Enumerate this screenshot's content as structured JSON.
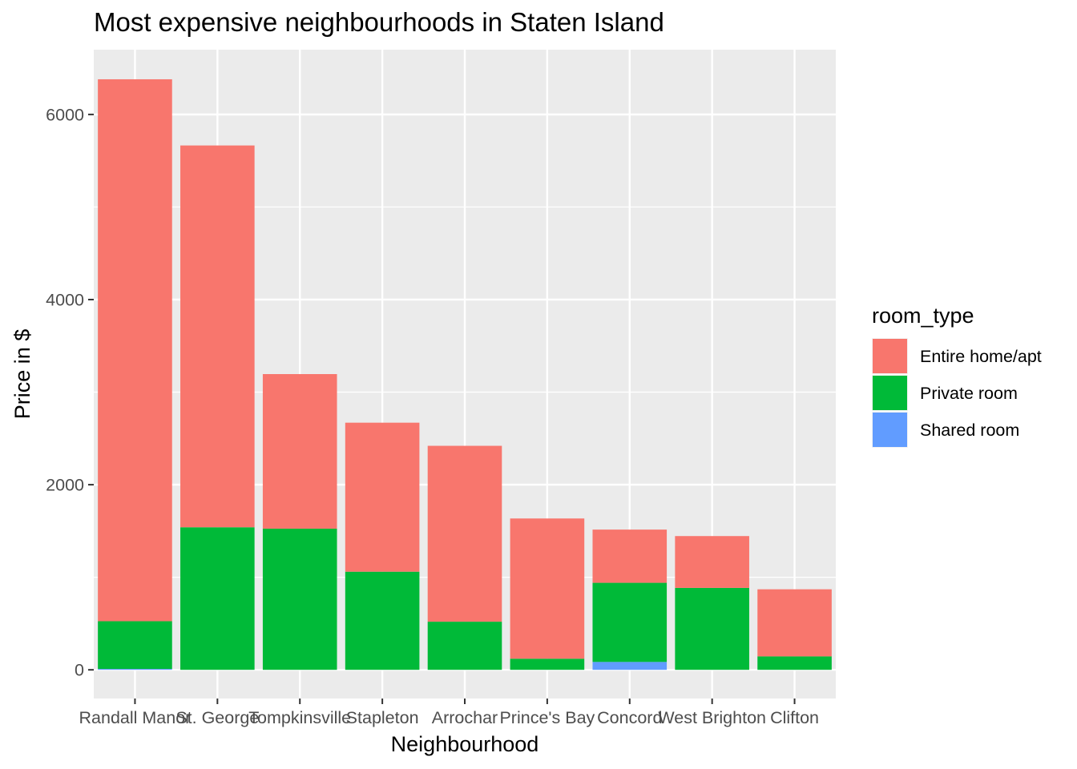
{
  "chart_data": {
    "type": "bar",
    "stacked": true,
    "title": "Most expensive neighbourhoods in Staten Island",
    "xlabel": "Neighbourhood",
    "ylabel": "Price in $",
    "categories": [
      "Randall Manor",
      "St. George",
      "Tompkinsville",
      "Stapleton",
      "Arrochar",
      "Prince's Bay",
      "Concord",
      "West Brighton",
      "Clifton"
    ],
    "series": [
      {
        "name": "Shared room",
        "color": "#619CFF",
        "values": [
          10,
          0,
          0,
          0,
          0,
          0,
          85,
          0,
          0
        ]
      },
      {
        "name": "Private room",
        "color": "#00BA38",
        "values": [
          515,
          1540,
          1525,
          1060,
          520,
          120,
          855,
          885,
          145
        ]
      },
      {
        "name": "Entire home/apt",
        "color": "#F8766D",
        "values": [
          5855,
          4125,
          1670,
          1610,
          1900,
          1515,
          575,
          560,
          725
        ]
      }
    ],
    "yticks": [
      0,
      2000,
      4000,
      6000
    ],
    "ylim": [
      -310,
      6700
    ],
    "grid": true,
    "legend": {
      "title": "room_type",
      "placement": "right",
      "entries": [
        "Entire home/apt",
        "Private room",
        "Shared room"
      ]
    },
    "colors": {
      "panel": "#EBEBEB",
      "grid": "#FFFFFF"
    }
  }
}
